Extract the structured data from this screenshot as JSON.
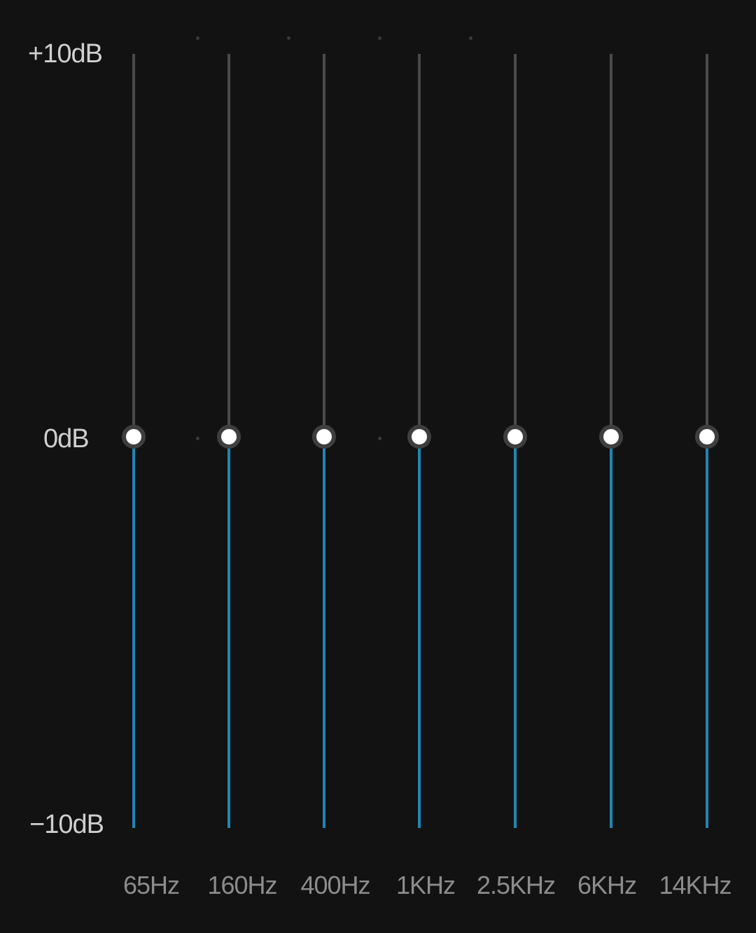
{
  "equalizer": {
    "scale": {
      "max_label": "+10dB",
      "mid_label": "0dB",
      "min_label": "−10dB",
      "max_db": 10,
      "min_db": -10
    },
    "colors": {
      "background": "#121212",
      "track_inactive": "#4a4a4a",
      "track_active": "#1f86b5",
      "knob_fill": "#ffffff",
      "knob_ring": "#3e3e3e",
      "label_text": "#cfcfcf",
      "freq_text": "#8c8c8c"
    },
    "bands": [
      {
        "label": "65Hz",
        "gain_db": 0
      },
      {
        "label": "160Hz",
        "gain_db": 0
      },
      {
        "label": "400Hz",
        "gain_db": 0
      },
      {
        "label": "1KHz",
        "gain_db": 0
      },
      {
        "label": "2.5KHz",
        "gain_db": 0
      },
      {
        "label": "6KHz",
        "gain_db": 0
      },
      {
        "label": "14KHz",
        "gain_db": 0
      }
    ]
  }
}
